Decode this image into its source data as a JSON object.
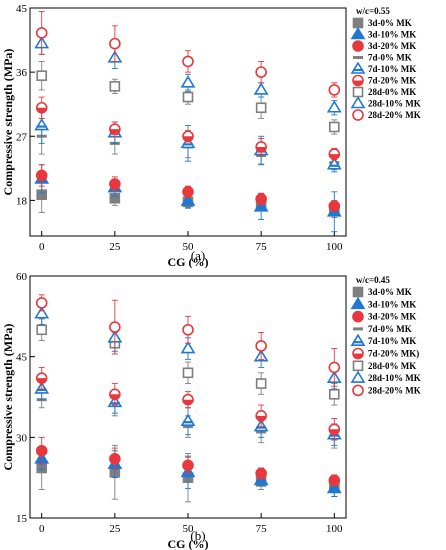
{
  "panels": [
    {
      "label": "(a)",
      "legend_title": "w/c=0.55"
    },
    {
      "label": "(b)",
      "legend_title": "w/c=0.45"
    }
  ],
  "styles": [
    {
      "key": "3d-0",
      "marker": "square",
      "filled": true,
      "color": "#7f7f7f"
    },
    {
      "key": "3d-10",
      "marker": "triangle",
      "filled": true,
      "color": "#1f78d1"
    },
    {
      "key": "3d-20",
      "marker": "circle",
      "filled": true,
      "color": "#e8383d"
    },
    {
      "key": "7d-0",
      "marker": "dash",
      "filled": true,
      "color": "#7f7f7f"
    },
    {
      "key": "7d-10",
      "marker": "tri-bar",
      "filled": false,
      "color": "#1f78d1"
    },
    {
      "key": "7d-20",
      "marker": "circ-bar",
      "filled": false,
      "color": "#e8383d"
    },
    {
      "key": "28d-0",
      "marker": "square",
      "filled": false,
      "color": "#7f7f7f"
    },
    {
      "key": "28d-10",
      "marker": "triangle",
      "filled": false,
      "color": "#1f78d1"
    },
    {
      "key": "28d-20",
      "marker": "circle",
      "filled": false,
      "color": "#e8383d"
    }
  ],
  "chart_data": [
    {
      "type": "scatter",
      "xlabel": "CG (%)",
      "ylabel": "Compressive strength (MPa)",
      "x": [
        0,
        25,
        50,
        75,
        100
      ],
      "xticks": [
        0,
        25,
        50,
        75,
        100
      ],
      "xlim": [
        -4,
        104
      ],
      "yticks": [
        18,
        27,
        36,
        45
      ],
      "ylim": [
        13,
        45
      ],
      "legend_placement": "right",
      "series": [
        {
          "name": "3d-0% MK",
          "values": [
            18.8,
            18.3,
            17.8,
            17.6,
            16.8
          ],
          "err": [
            2.5,
            1.0,
            0.8,
            1.0,
            1.2
          ]
        },
        {
          "name": "3d-10% MK",
          "values": [
            21.0,
            19.8,
            17.9,
            17.1,
            16.4
          ],
          "err": [
            2.0,
            1.2,
            1.0,
            1.8,
            2.8
          ]
        },
        {
          "name": "3d-20% MK",
          "values": [
            21.5,
            20.3,
            19.2,
            18.2,
            17.2
          ],
          "err": [
            1.5,
            1.0,
            0.8,
            0.8,
            0.5
          ]
        },
        {
          "name": "7d-0% MK",
          "values": [
            27.0,
            26.0,
            25.5,
            24.3,
            23.3
          ],
          "err": [
            2.5,
            1.5,
            1.5,
            1.2,
            1.0
          ]
        },
        {
          "name": "7d-10% MK",
          "values": [
            28.5,
            27.5,
            26.0,
            25.0,
            23.0
          ],
          "err": [
            2.5,
            1.5,
            2.5,
            2.0,
            1.0
          ]
        },
        {
          "name": "7d-20% MK",
          "values": [
            31.0,
            28.0,
            27.0,
            25.5,
            24.5
          ],
          "err": [
            1.5,
            1.0,
            0.8,
            1.2,
            0.8
          ]
        },
        {
          "name": "28d-0% MK",
          "values": [
            35.5,
            34.0,
            32.5,
            31.0,
            28.3
          ],
          "err": [
            2.0,
            1.0,
            1.0,
            1.5,
            1.0
          ]
        },
        {
          "name": "28d-10% MK",
          "values": [
            40.0,
            38.0,
            34.5,
            33.5,
            31.0
          ],
          "err": [
            1.5,
            1.5,
            1.2,
            1.0,
            1.0
          ]
        },
        {
          "name": "28d-20% MK",
          "values": [
            41.5,
            40.0,
            37.5,
            36.0,
            33.5
          ],
          "err": [
            3.0,
            2.5,
            1.5,
            1.5,
            1.0
          ]
        }
      ]
    },
    {
      "type": "scatter",
      "xlabel": "CG (%)",
      "ylabel": "Compressive strength (MPa)",
      "x": [
        0,
        25,
        50,
        75,
        100
      ],
      "xticks": [
        0,
        25,
        50,
        75,
        100
      ],
      "xlim": [
        -4,
        104
      ],
      "yticks": [
        15,
        30,
        45,
        60
      ],
      "ylim": [
        15,
        60
      ],
      "legend_placement": "right",
      "series": [
        {
          "name": "3d-0% MK",
          "values": [
            24.3,
            23.5,
            22.5,
            21.8,
            21.0
          ],
          "err": [
            4.0,
            5.0,
            4.5,
            1.5,
            2.0
          ]
        },
        {
          "name": "3d-10% MK",
          "values": [
            26.0,
            25.0,
            23.5,
            22.0,
            20.5
          ],
          "err": [
            2.0,
            2.5,
            3.0,
            1.0,
            1.5
          ]
        },
        {
          "name": "3d-20% MK",
          "values": [
            27.5,
            26.0,
            24.8,
            23.3,
            22.0
          ],
          "err": [
            2.5,
            2.0,
            1.5,
            1.0,
            1.0
          ]
        },
        {
          "name": "7d-0% MK",
          "values": [
            37.0,
            36.0,
            32.0,
            31.0,
            30.0
          ],
          "err": [
            1.5,
            2.0,
            2.0,
            2.0,
            2.0
          ]
        },
        {
          "name": "7d-10% MK",
          "values": [
            39.0,
            36.5,
            33.0,
            32.0,
            30.5
          ],
          "err": [
            2.0,
            2.0,
            2.5,
            2.0,
            2.0
          ]
        },
        {
          "name": "7d-20% MK)",
          "values": [
            41.0,
            38.0,
            37.0,
            34.0,
            31.5
          ],
          "err": [
            2.0,
            2.0,
            1.5,
            2.0,
            2.0
          ]
        },
        {
          "name": "28d-0% MK",
          "values": [
            50.0,
            47.5,
            42.0,
            40.0,
            38.0
          ],
          "err": [
            2.0,
            2.0,
            2.0,
            2.0,
            2.0
          ]
        },
        {
          "name": "28d-10% MK",
          "values": [
            53.0,
            48.5,
            46.5,
            45.0,
            41.0
          ],
          "err": [
            2.0,
            2.5,
            2.0,
            2.0,
            2.0
          ]
        },
        {
          "name": "28d-20% MK",
          "values": [
            55.0,
            50.5,
            50.0,
            47.0,
            43.0
          ],
          "err": [
            1.5,
            5.0,
            2.5,
            2.5,
            3.5
          ]
        }
      ]
    }
  ]
}
